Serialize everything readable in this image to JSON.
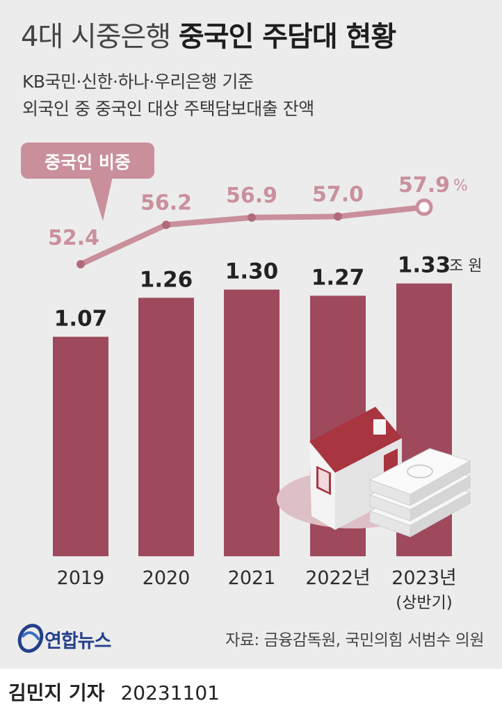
{
  "title": {
    "light": "4대 시중은행",
    "bold": "중국인 주담대 현황"
  },
  "subtitle": [
    "KB국민·신한·하나·우리은행 기준",
    "외국인 중 중국인 대상 주택담보대출 잔액"
  ],
  "source": "자료: 금융감독원, 국민의힘 서범수 의원",
  "logo": "연합뉴스",
  "footer": {
    "reporter": "김민지 기자",
    "date": "20231101"
  },
  "colors": {
    "bar": "#9e4a5c",
    "line": "#c9909c",
    "background": "#ececec",
    "house_roof": "#a8353f"
  },
  "chart_data": {
    "type": "bar+line",
    "categories": [
      "2019",
      "2020",
      "2021",
      "2022년",
      "2023년"
    ],
    "category_notes": [
      "",
      "",
      "",
      "",
      "(상반기)"
    ],
    "bar_series": {
      "values": [
        1.07,
        1.26,
        1.3,
        1.27,
        1.33
      ],
      "labels": [
        "1.07",
        "1.26",
        "1.30",
        "1.27",
        "1.33"
      ],
      "unit": "조 원"
    },
    "line_series": {
      "name": "중국인 비중",
      "values": [
        52.4,
        56.2,
        56.9,
        57.0,
        57.9
      ],
      "labels": [
        "52.4",
        "56.2",
        "56.9",
        "57.0",
        "57.9"
      ],
      "unit": "%"
    }
  }
}
